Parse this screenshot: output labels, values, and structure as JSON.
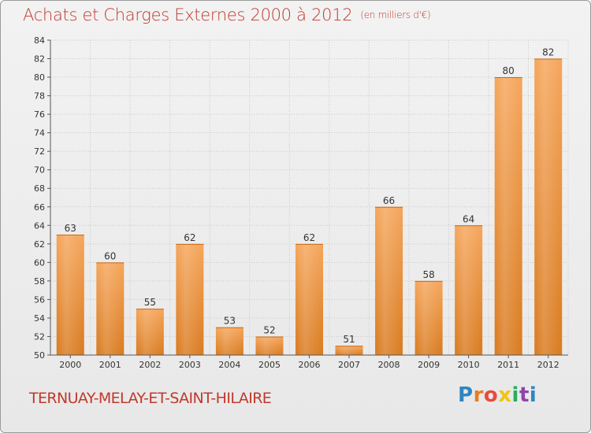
{
  "header": {
    "title": "Achats et Charges Externes 2000 à 2012",
    "subtitle": "(en milliers d'€)"
  },
  "footer": {
    "commune": "TERNUAY-MELAY-ET-SAINT-HILAIRE",
    "logo_letters": [
      "P",
      "r",
      "o",
      "x",
      "i",
      "t",
      "i"
    ]
  },
  "colors": {
    "title": "#c0392b",
    "bar_light": "#f5a55a",
    "bar_dark": "#d97a1e",
    "axis": "#555555",
    "grid": "#c8c8c8"
  },
  "chart_data": {
    "type": "bar",
    "title": "Achats et Charges Externes 2000 à 2012",
    "subtitle": "(en milliers d'€)",
    "xlabel": "",
    "ylabel": "",
    "categories": [
      "2000",
      "2001",
      "2002",
      "2003",
      "2004",
      "2005",
      "2006",
      "2007",
      "2008",
      "2009",
      "2010",
      "2011",
      "2012"
    ],
    "values": [
      63,
      60,
      55,
      62,
      53,
      52,
      62,
      51,
      66,
      58,
      64,
      80,
      82
    ],
    "ylim": [
      50,
      84
    ],
    "yticks": [
      50,
      52,
      54,
      56,
      58,
      60,
      62,
      64,
      66,
      68,
      70,
      72,
      74,
      76,
      78,
      80,
      82,
      84
    ],
    "grid": true,
    "data_labels": true
  }
}
